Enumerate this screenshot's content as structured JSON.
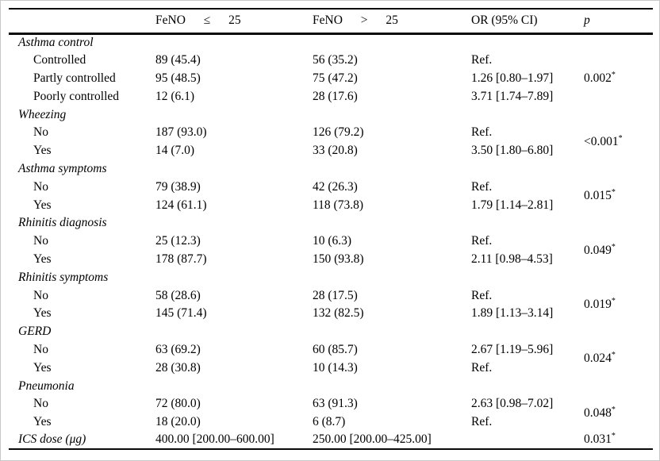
{
  "header": {
    "feno_le": "FeNO ≤ 25",
    "feno_gt": "FeNO > 25",
    "or": "OR (95% CI)",
    "p": "p"
  },
  "sections": [
    {
      "title": "Asthma control",
      "rows": [
        {
          "label": "Controlled",
          "c1": "89 (45.4)",
          "c2": "56 (35.2)",
          "or": "Ref."
        },
        {
          "label": "Partly controlled",
          "c1": "95 (48.5)",
          "c2": "75 (47.2)",
          "or": "1.26 [0.80–1.97]"
        },
        {
          "label": "Poorly controlled",
          "c1": "12 (6.1)",
          "c2": "28 (17.6)",
          "or": "3.71 [1.74–7.89]"
        }
      ],
      "p": "0.002",
      "p_flag": "*"
    },
    {
      "title": "Wheezing",
      "rows": [
        {
          "label": "No",
          "c1": "187 (93.0)",
          "c2": "126 (79.2)",
          "or": "Ref."
        },
        {
          "label": "Yes",
          "c1": "14 (7.0)",
          "c2": "33 (20.8)",
          "or": "3.50 [1.80–6.80]"
        }
      ],
      "p": "<0.001",
      "p_flag": "*"
    },
    {
      "title": "Asthma symptoms",
      "rows": [
        {
          "label": "No",
          "c1": "79 (38.9)",
          "c2": "42 (26.3)",
          "or": "Ref."
        },
        {
          "label": "Yes",
          "c1": "124 (61.1)",
          "c2": "118 (73.8)",
          "or": "1.79 [1.14–2.81]"
        }
      ],
      "p": "0.015",
      "p_flag": "*"
    },
    {
      "title": "Rhinitis diagnosis",
      "rows": [
        {
          "label": "No",
          "c1": "25 (12.3)",
          "c2": "10 (6.3)",
          "or": "Ref."
        },
        {
          "label": "Yes",
          "c1": "178 (87.7)",
          "c2": "150 (93.8)",
          "or": "2.11 [0.98–4.53]"
        }
      ],
      "p": "0.049",
      "p_flag": "*"
    },
    {
      "title": "Rhinitis symptoms",
      "rows": [
        {
          "label": "No",
          "c1": "58 (28.6)",
          "c2": "28 (17.5)",
          "or": "Ref."
        },
        {
          "label": "Yes",
          "c1": "145 (71.4)",
          "c2": "132 (82.5)",
          "or": "1.89 [1.13–3.14]"
        }
      ],
      "p": "0.019",
      "p_flag": "*"
    },
    {
      "title": "GERD",
      "rows": [
        {
          "label": "No",
          "c1": "63 (69.2)",
          "c2": "60 (85.7)",
          "or": "2.67 [1.19–5.96]"
        },
        {
          "label": "Yes",
          "c1": "28 (30.8)",
          "c2": "10 (14.3)",
          "or": "Ref."
        }
      ],
      "p": "0.024",
      "p_flag": "*"
    },
    {
      "title": "Pneumonia",
      "rows": [
        {
          "label": "No",
          "c1": "72 (80.0)",
          "c2": "63 (91.3)",
          "or": "2.63 [0.98–7.02]"
        },
        {
          "label": "Yes",
          "c1": "18 (20.0)",
          "c2": "6 (8.7)",
          "or": "Ref."
        }
      ],
      "p": "0.048",
      "p_flag": "*"
    }
  ],
  "footer_row": {
    "label": "ICS dose (μg)",
    "c1": "400.00 [200.00–600.00]",
    "c2": "250.00 [200.00–425.00]",
    "p": "0.031",
    "p_flag": "*"
  }
}
